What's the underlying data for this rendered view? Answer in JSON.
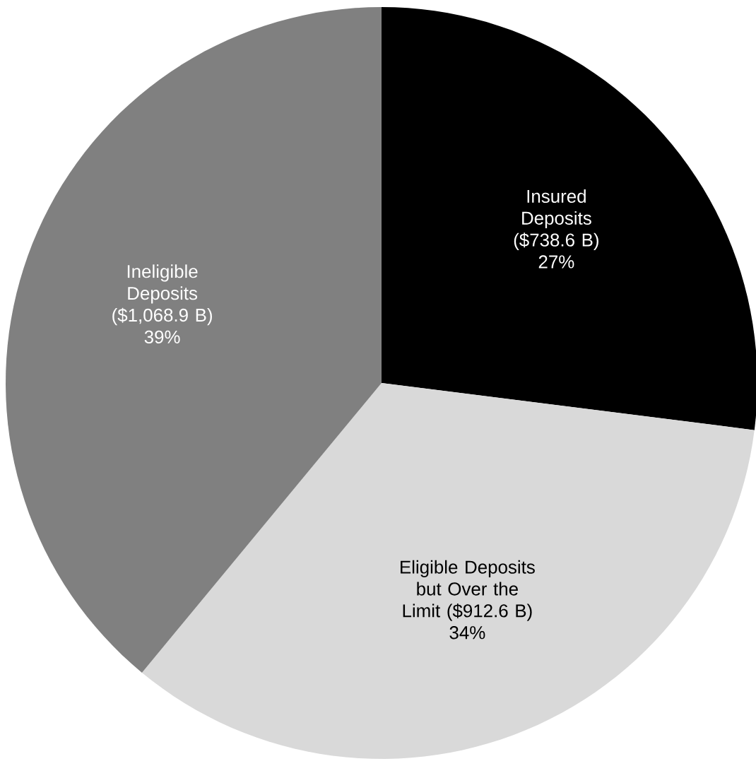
{
  "chart_data": {
    "type": "pie",
    "categories": [
      "Insured Deposits ($738.6 B)",
      "Eligible Deposits but Over the Limit ($912.6 B)",
      "Ineligible Deposits ($1,068.9 B)"
    ],
    "values": [
      27,
      34,
      39
    ],
    "value_labels": [
      "27%",
      "34%",
      "39%"
    ],
    "colors": [
      "#000000",
      "#d9d9d9",
      "#808080"
    ]
  }
}
